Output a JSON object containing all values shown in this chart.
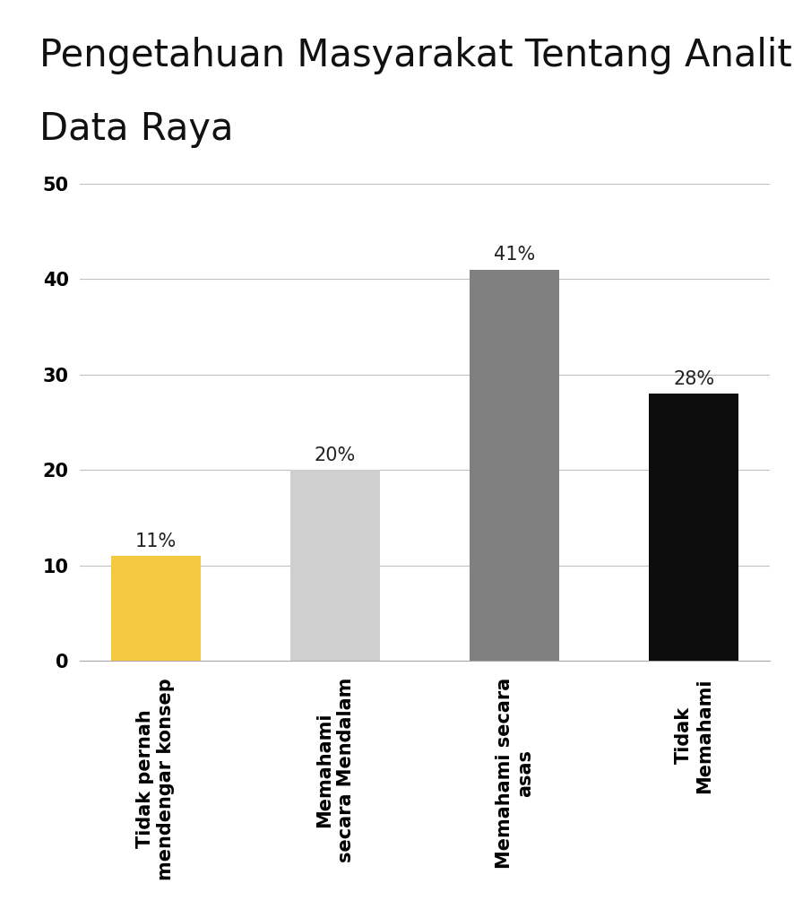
{
  "title_line1": "Pengetahuan Masyarakat Tentang Analitis",
  "title_line2": "Data Raya",
  "categories": [
    "Tidak pernah\nmendengar konsep",
    "Memahami\nsecara Mendalam",
    "Memahami secara\nasas",
    "Tidak\nMemahami"
  ],
  "values": [
    11,
    20,
    41,
    28
  ],
  "labels": [
    "11%",
    "20%",
    "41%",
    "28%"
  ],
  "bar_colors": [
    "#F5C842",
    "#CFCFCF",
    "#808080",
    "#0D0D0D"
  ],
  "ylim": [
    0,
    50
  ],
  "yticks": [
    0,
    10,
    20,
    30,
    40,
    50
  ],
  "title_fontsize": 30,
  "tick_fontsize": 15,
  "label_fontsize": 15,
  "background_color": "#ffffff",
  "grid_color": "#c0c0c0"
}
